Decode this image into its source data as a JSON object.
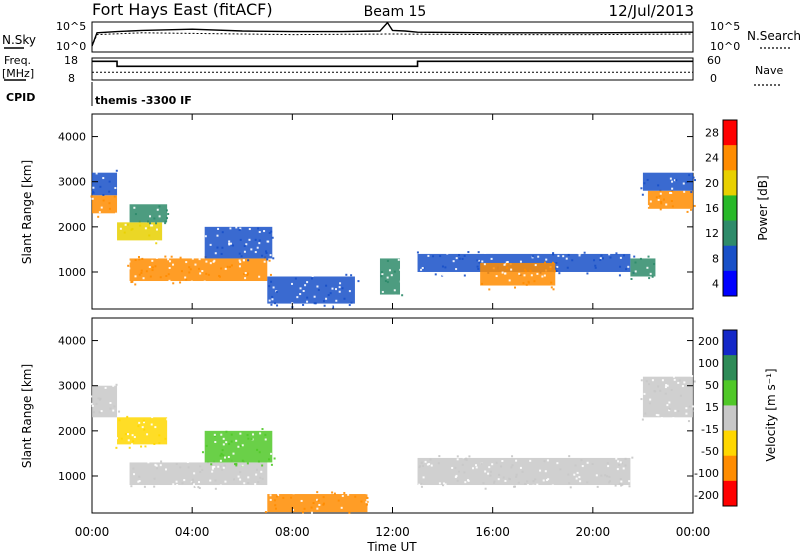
{
  "header": {
    "station": "Fort Hays East (fitACF)",
    "beam": "Beam 15",
    "date": "12/Jul/2013"
  },
  "noise_panel": {
    "left_label": "N.Sky",
    "right_label": "N.Search",
    "left_ticks": [
      "10^5",
      "10^0"
    ],
    "right_ticks": [
      "10^5",
      "10^0"
    ]
  },
  "freq_panel": {
    "left_label_line1": "Freq.",
    "left_label_line2": "[MHz]",
    "right_label": "Nave",
    "left_ticks": [
      "18",
      "8"
    ],
    "right_ticks": [
      "60",
      "0"
    ]
  },
  "cpid_panel": {
    "label": "CPID",
    "value": "themis -3300 IF"
  },
  "time_axis": {
    "label": "Time UT",
    "ticks": [
      "00:00",
      "04:00",
      "08:00",
      "12:00",
      "16:00",
      "20:00",
      "00:00"
    ]
  },
  "chart_data": [
    {
      "type": "heatmap",
      "name": "power",
      "ylabel": "Slant Range [km]",
      "colorbar_label": "Power [dB]",
      "colorbar_ticks": [
        "28",
        "24",
        "20",
        "16",
        "12",
        "8",
        "4"
      ],
      "ylim": [
        180,
        4500
      ],
      "yticks": [
        1000,
        2000,
        3000,
        4000
      ],
      "xlim_hours": [
        0,
        24
      ],
      "colors": {
        "high": "#ff0000",
        "orange": "#ff8c00",
        "yellow": "#e8d000",
        "green": "#28b828",
        "teal": "#2e8b6a",
        "blue": "#1850c8",
        "low": "#0000ff"
      },
      "regions": [
        {
          "t": [
            0.0,
            1.0
          ],
          "r": [
            2300,
            2700
          ],
          "level": "orange"
        },
        {
          "t": [
            0.0,
            1.0
          ],
          "r": [
            2700,
            3200
          ],
          "level": "blue"
        },
        {
          "t": [
            1.0,
            2.8
          ],
          "r": [
            1700,
            2100
          ],
          "level": "yellow"
        },
        {
          "t": [
            1.5,
            3.0
          ],
          "r": [
            2100,
            2500
          ],
          "level": "teal"
        },
        {
          "t": [
            1.5,
            7.0
          ],
          "r": [
            800,
            1300
          ],
          "level": "orange"
        },
        {
          "t": [
            4.5,
            7.2
          ],
          "r": [
            1300,
            2000
          ],
          "level": "blue"
        },
        {
          "t": [
            7.0,
            10.5
          ],
          "r": [
            300,
            900
          ],
          "level": "blue"
        },
        {
          "t": [
            11.5,
            12.3
          ],
          "r": [
            500,
            1300
          ],
          "level": "teal"
        },
        {
          "t": [
            13.0,
            21.5
          ],
          "r": [
            1000,
            1400
          ],
          "level": "blue"
        },
        {
          "t": [
            15.5,
            18.5
          ],
          "r": [
            700,
            1200
          ],
          "level": "orange"
        },
        {
          "t": [
            21.5,
            22.5
          ],
          "r": [
            900,
            1300
          ],
          "level": "teal"
        },
        {
          "t": [
            22.2,
            24.0
          ],
          "r": [
            2400,
            2800
          ],
          "level": "orange"
        },
        {
          "t": [
            22.0,
            24.0
          ],
          "r": [
            2800,
            3200
          ],
          "level": "blue"
        }
      ]
    },
    {
      "type": "heatmap",
      "name": "velocity",
      "ylabel": "Slant Range [km]",
      "colorbar_label": "Velocity [m s⁻¹]",
      "colorbar_ticks": [
        "200",
        "100",
        "50",
        "15",
        "-15",
        "-50",
        "-100",
        "-200"
      ],
      "ylim": [
        180,
        4500
      ],
      "yticks": [
        1000,
        2000,
        3000,
        4000
      ],
      "xlim_hours": [
        0,
        24
      ],
      "colors": {
        "pos_high": "#1428c8",
        "pos_mid": "#2e8b57",
        "pos_low": "#50c828",
        "zero": "#c8c8c8",
        "neg_low": "#ffd700",
        "neg_mid": "#ff8c00",
        "neg_high": "#ff0000"
      },
      "regions": [
        {
          "t": [
            0.0,
            1.0
          ],
          "r": [
            2300,
            3000
          ],
          "level": "zero"
        },
        {
          "t": [
            1.0,
            3.0
          ],
          "r": [
            1700,
            2300
          ],
          "level": "neg_low"
        },
        {
          "t": [
            1.5,
            7.0
          ],
          "r": [
            800,
            1300
          ],
          "level": "zero"
        },
        {
          "t": [
            4.5,
            7.2
          ],
          "r": [
            1300,
            2000
          ],
          "level": "pos_low"
        },
        {
          "t": [
            7.0,
            11.0
          ],
          "r": [
            200,
            600
          ],
          "level": "neg_mid"
        },
        {
          "t": [
            13.0,
            21.5
          ],
          "r": [
            800,
            1400
          ],
          "level": "zero"
        },
        {
          "t": [
            22.0,
            24.0
          ],
          "r": [
            2300,
            3200
          ],
          "level": "zero"
        }
      ]
    },
    {
      "type": "line",
      "name": "noise",
      "series": [
        {
          "x": [
            0,
            0.2,
            1,
            2,
            3,
            4,
            6,
            8,
            10,
            11.5,
            11.8,
            12.0,
            12.5,
            13,
            16,
            20,
            24
          ],
          "y": [
            1,
            3.2,
            3.4,
            3.6,
            3.7,
            3.8,
            3.5,
            3.4,
            3.4,
            3.5,
            4.9,
            3.6,
            3.5,
            3.3,
            3.2,
            3.2,
            3.3
          ]
        },
        {
          "x": [
            0,
            0.2,
            2,
            4,
            8,
            12,
            16,
            20,
            24
          ],
          "y": [
            1,
            2.9,
            3.2,
            3.1,
            2.9,
            3.0,
            2.9,
            2.9,
            3.0
          ]
        }
      ],
      "ylim": [
        0,
        5
      ]
    },
    {
      "type": "line",
      "name": "frequency",
      "series": [
        {
          "x": [
            0,
            1,
            1,
            13,
            13,
            24
          ],
          "y": [
            16.5,
            16.5,
            14.2,
            14.2,
            16.5,
            16.5
          ]
        },
        {
          "x": [
            0,
            24
          ],
          "y": [
            11.5,
            11.5
          ]
        }
      ],
      "ylim": [
        8,
        18
      ]
    }
  ]
}
